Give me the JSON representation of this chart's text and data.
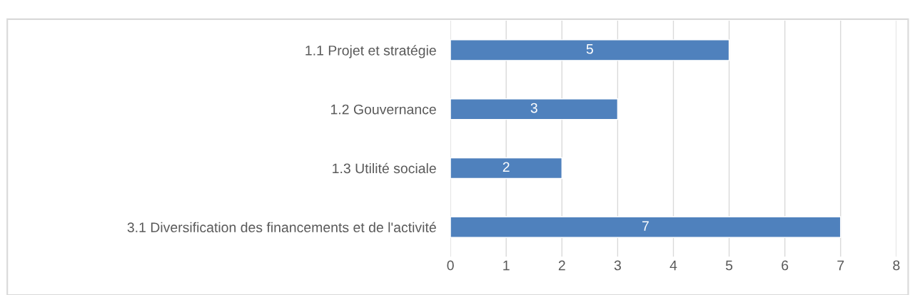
{
  "chart_data": {
    "type": "bar",
    "orientation": "horizontal",
    "categories": [
      "1.1 Projet et stratégie",
      "1.2 Gouvernance",
      "1.3 Utilité sociale",
      "3.1 Diversification des financements et de l'activité"
    ],
    "values": [
      5,
      3,
      2,
      7
    ],
    "color": "#4f81bd",
    "xlim": [
      0,
      8
    ],
    "xticks": [
      0,
      1,
      2,
      3,
      4,
      5,
      6,
      7,
      8
    ],
    "grid": "x",
    "data_labels": true
  }
}
